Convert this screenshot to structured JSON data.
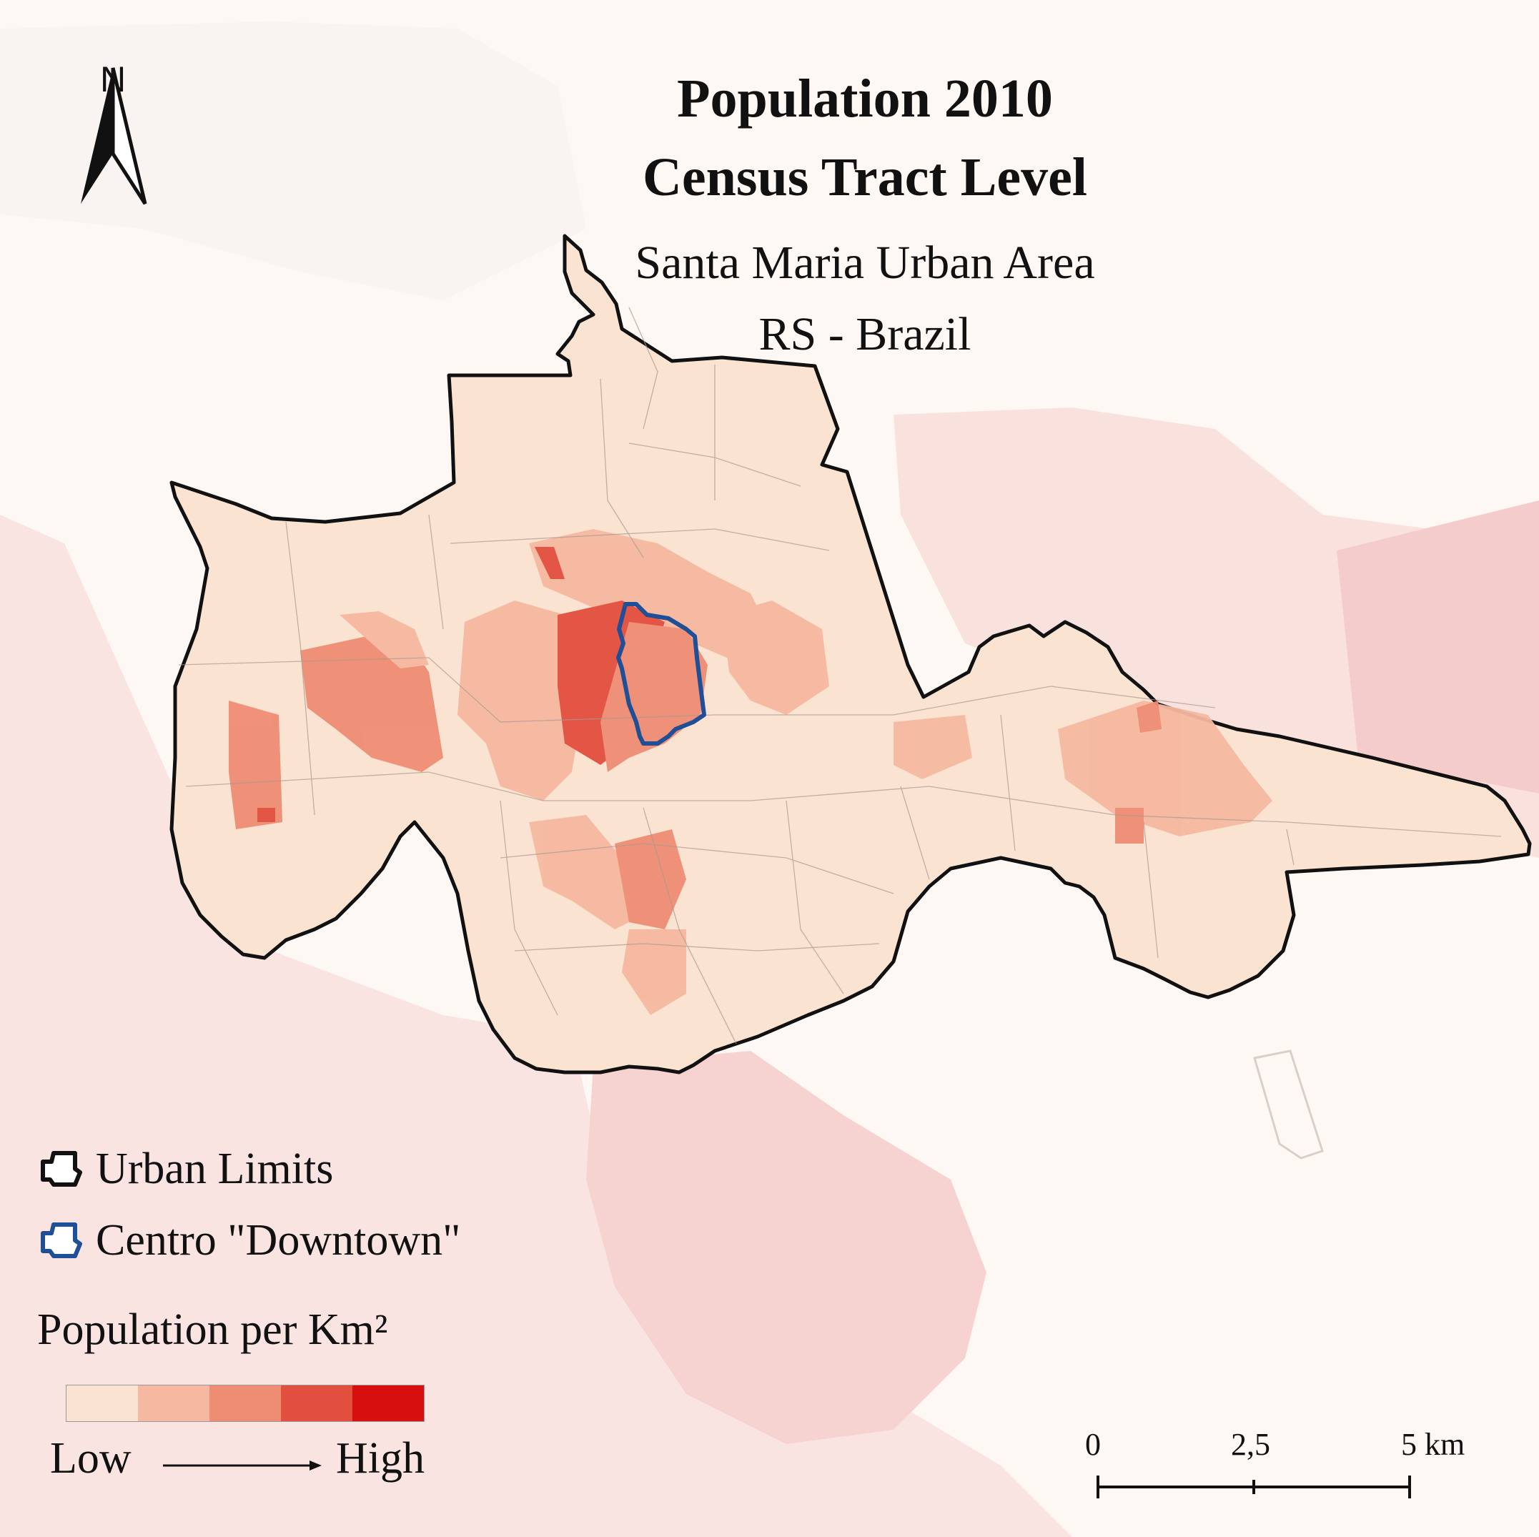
{
  "title": {
    "line1": "Population 2010",
    "line2": "Census Tract Level",
    "line3": "Santa Maria Urban Area",
    "line4": "RS - Brazil"
  },
  "north_arrow": {
    "label": "N"
  },
  "legend": {
    "urban_limits": "Urban Limits",
    "downtown": "Centro \"Downtown\"",
    "density_title": "Population per Km²",
    "low": "Low",
    "high": "High",
    "ramp_colors": [
      "#fbe3d2",
      "#f6b8a0",
      "#ef8c74",
      "#e24f3e",
      "#d80f0f"
    ]
  },
  "scale_bar": {
    "labels": [
      "0",
      "2,5",
      "5 km"
    ]
  },
  "colors": {
    "background": "#fdf8f4",
    "outer_region": "#f8dcd6",
    "urban_fill": "#fbe3d2",
    "urban_outline": "#111111",
    "downtown_outline": "#1f4f96"
  }
}
